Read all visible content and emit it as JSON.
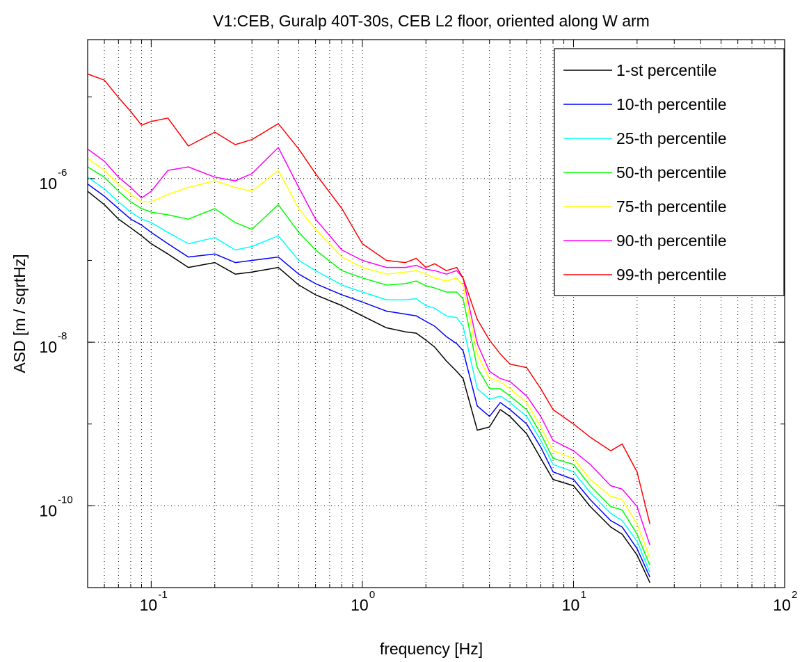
{
  "chart_data": {
    "type": "line",
    "title": "V1:CEB, Guralp 40T-30s, CEB L2 floor, oriented along W arm",
    "xlabel": "frequency [Hz]",
    "ylabel": "ASD [m / sqrtHz]",
    "xscale": "log",
    "yscale": "log",
    "grid": true,
    "legend": "upper right",
    "xlim": [
      0.05,
      100
    ],
    "ylim": [
      1e-11,
      5e-05
    ],
    "xticks": [
      {
        "value": 0.1,
        "label": "10",
        "exponent": "-1"
      },
      {
        "value": 1,
        "label": "10",
        "exponent": "0"
      },
      {
        "value": 10,
        "label": "10",
        "exponent": "1"
      },
      {
        "value": 100,
        "label": "10",
        "exponent": "2"
      }
    ],
    "yticks": [
      {
        "value": 1e-10,
        "label": "10",
        "exponent": "-10"
      },
      {
        "value": 1e-08,
        "label": "10",
        "exponent": "-8"
      },
      {
        "value": 1e-06,
        "label": "10",
        "exponent": "-6"
      }
    ],
    "x": [
      0.05,
      0.06,
      0.07,
      0.08,
      0.09,
      0.1,
      0.12,
      0.15,
      0.2,
      0.25,
      0.3,
      0.4,
      0.5,
      0.6,
      0.8,
      1,
      1.3,
      1.6,
      1.8,
      2,
      2.2,
      2.5,
      2.8,
      3,
      3.5,
      4,
      4.5,
      5,
      6,
      7,
      8,
      10,
      12,
      15,
      17,
      20,
      23
    ],
    "series": [
      {
        "name": "1-st percentile",
        "color": "#000000",
        "values": [
          7e-07,
          4.8e-07,
          3.2e-07,
          2.5e-07,
          2e-07,
          1.6e-07,
          1.2e-07,
          8.2e-08,
          9.4e-08,
          6.8e-08,
          7.2e-08,
          8.2e-08,
          5e-08,
          3.8e-08,
          2.8e-08,
          2.1e-08,
          1.5e-08,
          1.34e-08,
          1.29e-08,
          1.06e-08,
          8.7e-09,
          5.9e-09,
          4.4e-09,
          3.6e-09,
          8.4e-10,
          9.2e-10,
          1.5e-09,
          1.24e-09,
          7.6e-10,
          3.8e-10,
          2.1e-10,
          1.76e-10,
          9.8e-11,
          5.5e-11,
          4.5e-11,
          2.5e-11,
          1.15e-11
        ]
      },
      {
        "name": "10-th percentile",
        "color": "#0000ff",
        "values": [
          8.6e-07,
          6.1e-07,
          4.3e-07,
          3.2e-07,
          2.7e-07,
          2.2e-07,
          1.6e-07,
          1.1e-07,
          1.2e-07,
          9.4e-08,
          1e-07,
          1.1e-07,
          6.8e-08,
          5.2e-08,
          3.8e-08,
          3.1e-08,
          2.4e-08,
          2.2e-08,
          2.1e-08,
          1.8e-08,
          1.57e-08,
          1.17e-08,
          9.6e-09,
          7.9e-09,
          1.66e-09,
          1.24e-09,
          1.83e-09,
          1.5e-09,
          1e-09,
          5.2e-10,
          2.6e-10,
          2.1e-10,
          1.19e-10,
          6.6e-11,
          5.5e-11,
          3e-11,
          1.34e-11
        ]
      },
      {
        "name": "25-th percentile",
        "color": "#00ffff",
        "values": [
          1.04e-06,
          7.5e-07,
          5.2e-07,
          3.9e-07,
          3.2e-07,
          2.9e-07,
          2.2e-07,
          1.6e-07,
          1.9e-07,
          1.34e-07,
          1.48e-07,
          2e-07,
          1e-07,
          7.5e-08,
          5e-08,
          4.1e-08,
          3.3e-08,
          3.3e-08,
          3.4e-08,
          2.8e-08,
          2.6e-08,
          2.1e-08,
          2e-08,
          1.57e-08,
          2.7e-09,
          2e-09,
          2.2e-09,
          1.83e-09,
          1.24e-09,
          6.3e-10,
          3.2e-10,
          2.6e-10,
          1.45e-10,
          8.1e-11,
          6.6e-11,
          3.7e-11,
          1.53e-11
        ]
      },
      {
        "name": "50-th percentile",
        "color": "#00ff00",
        "values": [
          1.39e-06,
          1.04e-06,
          7e-07,
          5.2e-07,
          4.3e-07,
          3.9e-07,
          3.6e-07,
          3.2e-07,
          4.3e-07,
          2.9e-07,
          2.4e-07,
          4.8e-07,
          2.2e-07,
          1.34e-07,
          7.5e-08,
          6.1e-08,
          5e-08,
          5.2e-08,
          5.6e-08,
          4.9e-08,
          4.6e-08,
          4.1e-08,
          4.1e-08,
          3.4e-08,
          4.9e-09,
          2.7e-09,
          2.7e-09,
          2.2e-09,
          1.5e-09,
          7.6e-10,
          3.8e-10,
          3.2e-10,
          1.76e-10,
          9.8e-11,
          8.9e-11,
          4.5e-11,
          1.87e-11
        ]
      },
      {
        "name": "75-th percentile",
        "color": "#ffff00",
        "values": [
          1.76e-06,
          1.26e-06,
          8.6e-07,
          6.4e-07,
          5.2e-07,
          5.2e-07,
          6.4e-07,
          7.8e-07,
          9.4e-07,
          7.8e-07,
          7e-07,
          1.26e-06,
          4.3e-07,
          2.4e-07,
          1.1e-07,
          8.2e-08,
          6.8e-08,
          7.2e-08,
          7.5e-08,
          6.8e-08,
          6.1e-08,
          5.6e-08,
          6.1e-08,
          5e-08,
          7.2e-09,
          3.6e-09,
          3.3e-09,
          2.7e-09,
          1.83e-09,
          9.2e-10,
          4.7e-10,
          3.8e-10,
          2.1e-10,
          1.31e-10,
          1.19e-10,
          6e-11,
          2.3e-11
        ]
      },
      {
        "name": "90-th percentile",
        "color": "#ff00ff",
        "values": [
          2.3e-06,
          1.63e-06,
          1.04e-06,
          7.8e-07,
          5.8e-07,
          7e-07,
          1.26e-06,
          1.39e-06,
          1.04e-06,
          9.4e-07,
          1.15e-06,
          2.4e-06,
          7.8e-07,
          3.2e-07,
          1.34e-07,
          1e-07,
          8.2e-08,
          8.2e-08,
          8.7e-08,
          7.8e-08,
          7.5e-08,
          6.8e-08,
          7.5e-08,
          6.1e-08,
          9.6e-09,
          4.4e-09,
          3.6e-09,
          3.3e-09,
          2.2e-09,
          1.24e-09,
          6.3e-10,
          4.7e-10,
          3.2e-10,
          1.76e-10,
          1.6e-10,
          9.8e-11,
          3.3e-11
        ]
      },
      {
        "name": "99-th percentile",
        "color": "#ff0000",
        "values": [
          1.9e-05,
          1.6e-05,
          9.8e-06,
          6.6e-06,
          4.5e-06,
          5e-06,
          5.5e-06,
          2.5e-06,
          3.7e-06,
          2.6e-06,
          3e-06,
          4.7e-06,
          2.3e-06,
          1.15e-06,
          4.3e-07,
          1.6e-07,
          1e-07,
          9.4e-08,
          1.06e-07,
          8.2e-08,
          9.1e-08,
          7.5e-08,
          8.2e-08,
          6.1e-08,
          1.9e-08,
          1.06e-08,
          7.2e-09,
          5.4e-09,
          4.9e-09,
          2.7e-09,
          1.5e-09,
          1e-09,
          6.9e-10,
          4.7e-10,
          5.7e-10,
          2.6e-10,
          6e-11
        ]
      }
    ]
  }
}
